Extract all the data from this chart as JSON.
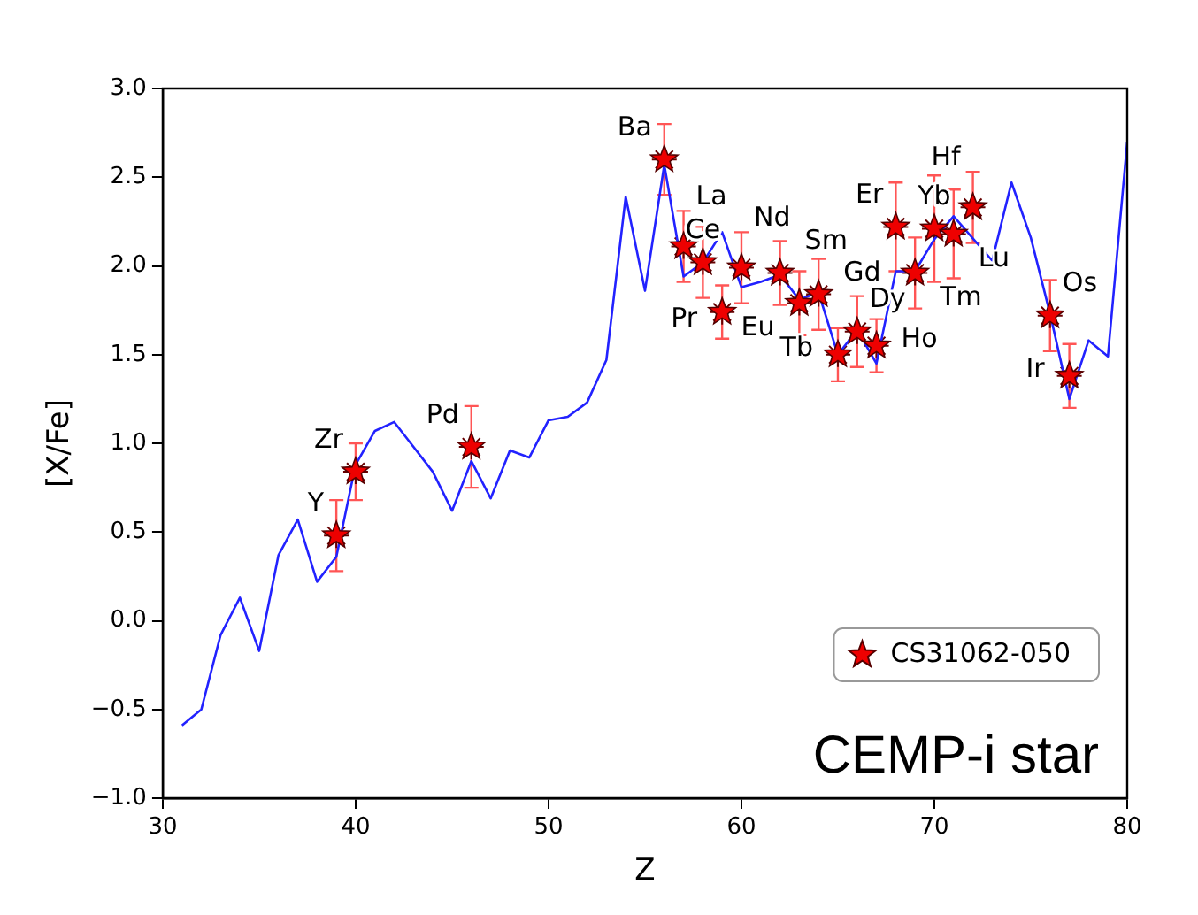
{
  "chart_data": {
    "type": "line",
    "xlabel": "Z",
    "ylabel": "[X/Fe]",
    "xlim": [
      30,
      80
    ],
    "xticks": [
      30,
      40,
      50,
      60,
      70,
      80
    ],
    "ylim": [
      -1,
      3
    ],
    "yticks": [
      {
        "value": -1,
        "label": "−1.0"
      },
      {
        "value": -0.5,
        "label": "−0.5"
      },
      {
        "value": 0,
        "label": "0.0"
      },
      {
        "value": 0.5,
        "label": "0.5"
      },
      {
        "value": 1,
        "label": "1.0"
      },
      {
        "value": 1.5,
        "label": "1.5"
      },
      {
        "value": 2,
        "label": "2.0"
      },
      {
        "value": 2.5,
        "label": "2.5"
      },
      {
        "value": 3,
        "label": "3.0"
      }
    ],
    "grid": false,
    "legend": "bottom right",
    "series": [
      {
        "type": "line",
        "color": "#2222ff",
        "x": [
          31,
          32,
          33,
          34,
          35,
          36,
          37,
          38,
          39,
          40,
          41,
          42,
          43,
          44,
          45,
          46,
          47,
          48,
          49,
          50,
          51,
          52,
          53,
          54,
          55,
          56,
          57,
          58,
          59,
          60,
          61,
          62,
          63,
          64,
          65,
          66,
          67,
          68,
          69,
          70,
          71,
          72,
          73,
          74,
          75,
          76,
          77,
          78,
          79,
          80
        ],
        "values": [
          -0.59,
          -0.5,
          -0.08,
          0.13,
          -0.17,
          0.37,
          0.57,
          0.22,
          0.36,
          0.88,
          1.07,
          1.12,
          0.98,
          0.84,
          0.62,
          0.9,
          0.69,
          0.96,
          0.92,
          1.13,
          1.15,
          1.23,
          1.47,
          2.39,
          1.86,
          2.57,
          1.94,
          2.02,
          2.19,
          1.88,
          1.91,
          1.95,
          1.81,
          1.85,
          1.5,
          1.64,
          1.45,
          1.97,
          1.97,
          2.15,
          2.28,
          null,
          2.03,
          2.47,
          2.16,
          1.73,
          1.25,
          1.58,
          1.49,
          2.7
        ]
      },
      {
        "type": "scatter",
        "name": "CS31062-050",
        "color": "#ee0000",
        "marker": "star",
        "x": [
          39,
          40,
          46,
          56,
          57,
          58,
          59,
          60,
          62,
          63,
          64,
          65,
          66,
          67,
          68,
          69,
          70,
          71,
          72,
          76,
          77
        ],
        "values": [
          0.48,
          0.84,
          0.98,
          2.6,
          2.11,
          2.02,
          1.74,
          1.99,
          1.96,
          1.79,
          1.84,
          1.5,
          1.63,
          1.55,
          2.22,
          1.96,
          2.21,
          2.18,
          2.33,
          1.72,
          1.38
        ],
        "errors": [
          0.2,
          0.16,
          0.23,
          0.2,
          0.2,
          0.2,
          0.15,
          0.2,
          0.18,
          0.18,
          0.2,
          0.15,
          0.2,
          0.15,
          0.25,
          0.2,
          0.3,
          0.25,
          0.2,
          0.2,
          0.18
        ]
      }
    ],
    "annotations": [
      {
        "text": "Y",
        "x": 39,
        "y": 0.48
      },
      {
        "text": "Zr",
        "x": 40,
        "y": 0.84
      },
      {
        "text": "Pd",
        "x": 46,
        "y": 0.98
      },
      {
        "text": "Ba",
        "x": 56,
        "y": 2.6
      },
      {
        "text": "La",
        "x": 57,
        "y": 2.11
      },
      {
        "text": "Ce",
        "x": 58,
        "y": 2.02
      },
      {
        "text": "Pr",
        "x": 59,
        "y": 1.74
      },
      {
        "text": "Nd",
        "x": 60,
        "y": 1.99
      },
      {
        "text": "Sm",
        "x": 62,
        "y": 1.96
      },
      {
        "text": "Eu",
        "x": 63,
        "y": 1.79
      },
      {
        "text": "Gd",
        "x": 64,
        "y": 1.84
      },
      {
        "text": "Tb",
        "x": 65,
        "y": 1.5
      },
      {
        "text": "Dy",
        "x": 66,
        "y": 1.63
      },
      {
        "text": "Ho",
        "x": 67,
        "y": 1.55
      },
      {
        "text": "Er",
        "x": 68,
        "y": 2.22
      },
      {
        "text": "Tm",
        "x": 69,
        "y": 1.96
      },
      {
        "text": "Yb",
        "x": 70,
        "y": 2.21
      },
      {
        "text": "Lu",
        "x": 71,
        "y": 2.18
      },
      {
        "text": "Hf",
        "x": 72,
        "y": 2.33
      },
      {
        "text": "Os",
        "x": 76,
        "y": 1.72
      },
      {
        "text": "Ir",
        "x": 77,
        "y": 1.38
      },
      "CEMP-i star"
    ]
  }
}
